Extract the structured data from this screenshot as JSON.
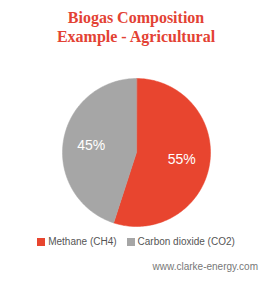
{
  "chart_data": {
    "type": "pie",
    "title": "Biogas Composition Example - Agricultural",
    "categories": [
      "Methane (CH4)",
      "Carbon dioxide (CO2)"
    ],
    "values": [
      55,
      45
    ],
    "value_labels": [
      "55%",
      "45%"
    ],
    "colors": [
      "#e8452f",
      "#a6a6a6"
    ],
    "data_labels": true,
    "legend": "bottom",
    "caption": "www.clarke-energy.com"
  }
}
